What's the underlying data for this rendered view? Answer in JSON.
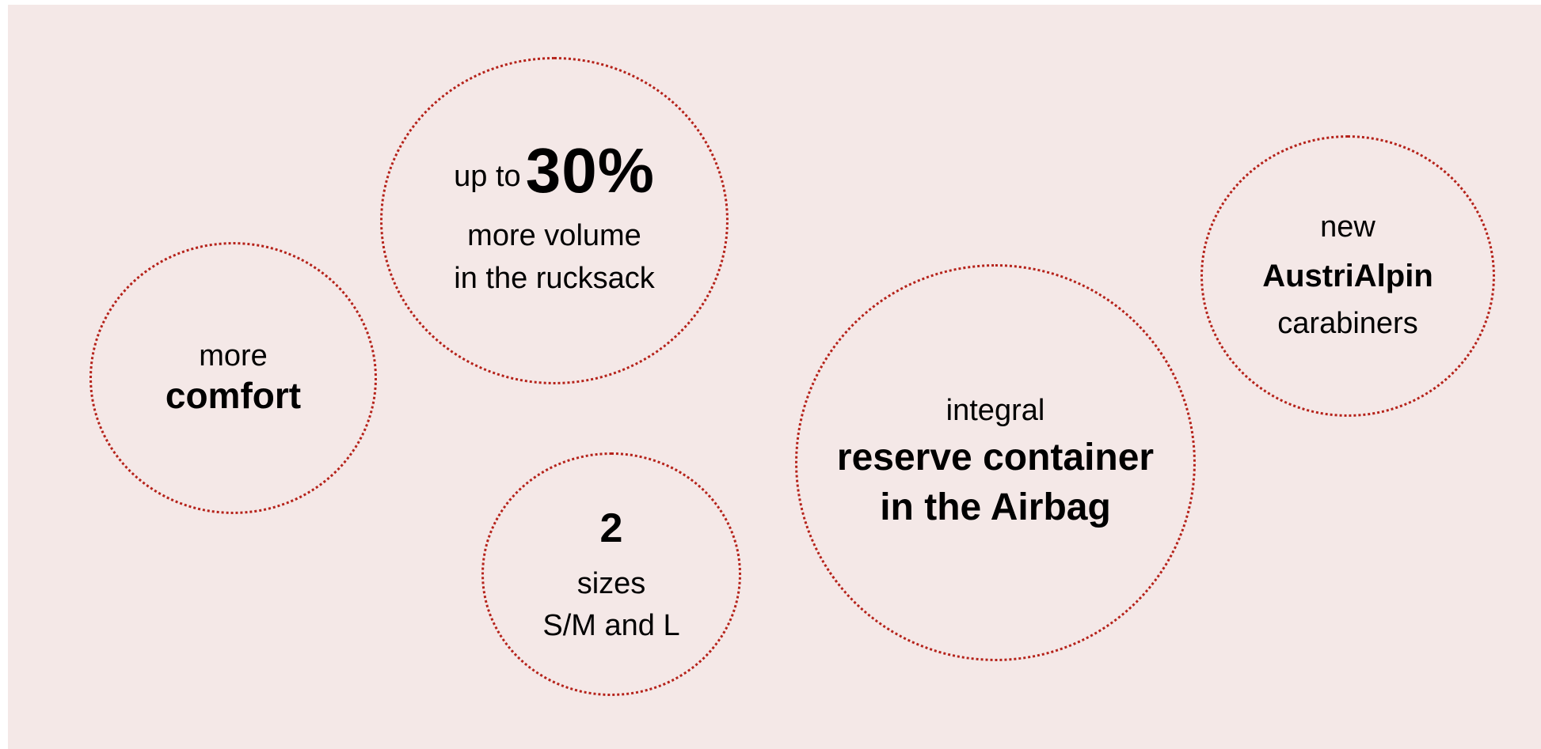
{
  "colors": {
    "background": "#f4e8e7",
    "circle_border": "#b5221a",
    "text": "#000000"
  },
  "bubbles": {
    "volume": {
      "prefix": "up to",
      "value": "30%",
      "line2": "more volume",
      "line3": "in the rucksack"
    },
    "comfort": {
      "line1": "more",
      "line2": "comfort"
    },
    "sizes": {
      "value": "2",
      "line2": "sizes",
      "line3": "S/M and L"
    },
    "reserve": {
      "line1": "integral",
      "line2": "reserve container",
      "line3": "in the Airbag"
    },
    "carabiners": {
      "line1": "new",
      "line2": "AustriAlpin",
      "line3": "carabiners"
    }
  }
}
